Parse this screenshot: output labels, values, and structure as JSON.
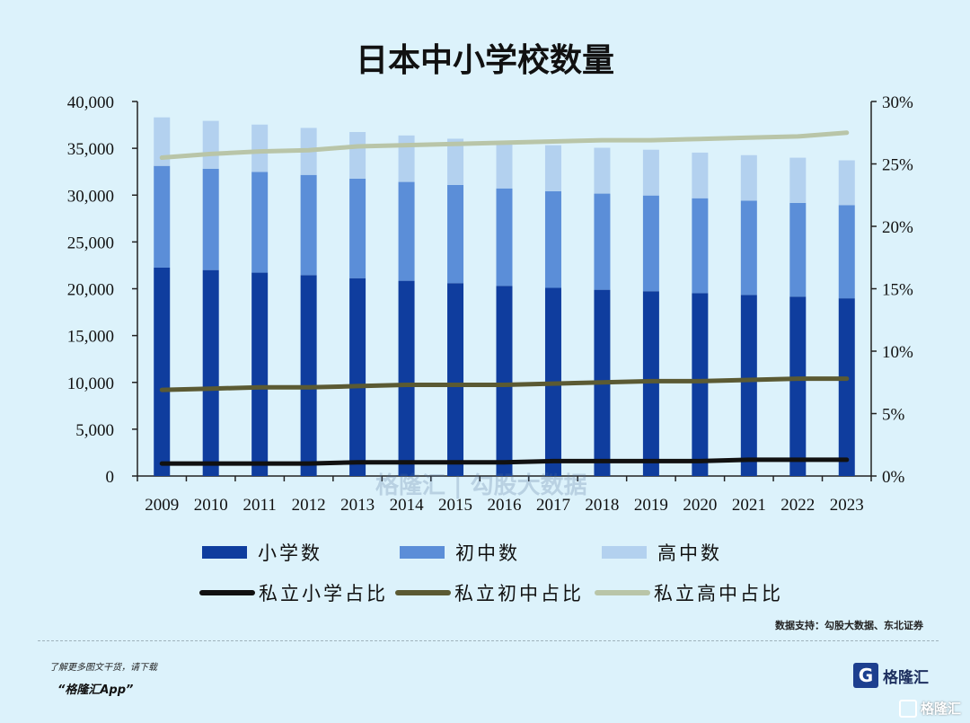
{
  "title": "日本中小学校数量",
  "chart_data": {
    "type": "bar",
    "stacked": true,
    "categories": [
      "2009",
      "2010",
      "2011",
      "2012",
      "2013",
      "2014",
      "2015",
      "2016",
      "2017",
      "2018",
      "2019",
      "2020",
      "2021",
      "2022",
      "2023"
    ],
    "series": [
      {
        "name": "小学数",
        "axis": "left",
        "color": "#0f3d9e",
        "values": [
          22258,
          22000,
          21721,
          21460,
          21131,
          20852,
          20601,
          20313,
          20095,
          19892,
          19738,
          19525,
          19336,
          19161,
          18980
        ]
      },
      {
        "name": "初中数",
        "axis": "left",
        "color": "#5b8ed8",
        "values": [
          10864,
          10815,
          10751,
          10699,
          10628,
          10557,
          10484,
          10404,
          10325,
          10270,
          10222,
          10142,
          10076,
          10012,
          9944
        ]
      },
      {
        "name": "高中数",
        "axis": "left",
        "color": "#b3d1ef",
        "values": [
          5183,
          5116,
          5060,
          5022,
          4981,
          4963,
          4939,
          4925,
          4907,
          4897,
          4887,
          4874,
          4856,
          4824,
          4791
        ]
      }
    ],
    "lines": [
      {
        "name": "私立小学占比",
        "axis": "right",
        "color": "#111111",
        "values": [
          1.0,
          1.0,
          1.0,
          1.0,
          1.1,
          1.1,
          1.1,
          1.1,
          1.2,
          1.2,
          1.2,
          1.2,
          1.3,
          1.3,
          1.3
        ]
      },
      {
        "name": "私立初中占比",
        "axis": "right",
        "color": "#5b5a33",
        "values": [
          6.9,
          7.0,
          7.1,
          7.1,
          7.2,
          7.3,
          7.3,
          7.3,
          7.4,
          7.5,
          7.6,
          7.6,
          7.7,
          7.8,
          7.8
        ]
      },
      {
        "name": "私立高中占比",
        "axis": "right",
        "color": "#b9c5a8",
        "values": [
          25.5,
          25.8,
          26.0,
          26.1,
          26.4,
          26.5,
          26.6,
          26.7,
          26.8,
          26.9,
          26.9,
          27.0,
          27.1,
          27.2,
          27.5
        ]
      }
    ],
    "y_left": {
      "min": 0,
      "max": 40000,
      "ticks": [
        "0",
        "5,000",
        "10,000",
        "15,000",
        "20,000",
        "25,000",
        "30,000",
        "35,000",
        "40,000"
      ]
    },
    "y_right": {
      "min": 0,
      "max": 30,
      "ticks": [
        "0%",
        "5%",
        "10%",
        "15%",
        "20%",
        "25%",
        "30%"
      ]
    },
    "legend_position": "bottom"
  },
  "source": "数据支持：勾股大数据、东北证券",
  "watermark": "格隆汇 | 勾股大数据",
  "footer": {
    "line1": "了解更多图文干货，请下载",
    "line2": "“格隆汇App”"
  },
  "logo": {
    "mark": "G",
    "name": "格隆汇"
  },
  "corner_mark": "格隆汇"
}
